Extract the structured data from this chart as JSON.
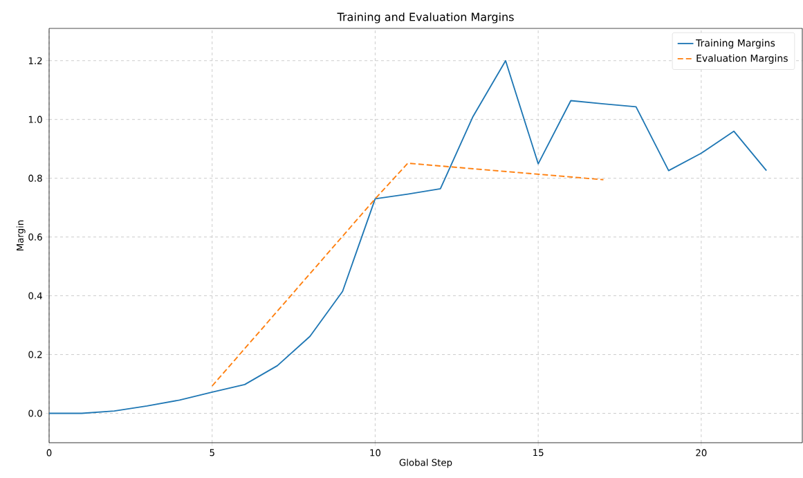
{
  "chart_data": {
    "type": "line",
    "title": "Training and Evaluation Margins",
    "xlabel": "Global Step",
    "ylabel": "Margin",
    "series": [
      {
        "name": "Training Margins",
        "color": "#1f77b4",
        "line_style": "solid",
        "x": [
          0,
          1,
          2,
          3,
          4,
          5,
          6,
          7,
          8,
          9,
          10,
          11,
          12,
          13,
          14,
          15,
          16,
          17,
          18,
          19,
          20,
          21,
          22
        ],
        "values": [
          0,
          0,
          0.008,
          0.025,
          0.045,
          0.072,
          0.098,
          0.162,
          0.262,
          0.415,
          0.73,
          0.746,
          0.764,
          1.01,
          1.2,
          0.849,
          1.064,
          1.053,
          1.043,
          0.826,
          0.885,
          0.96,
          0.826
        ]
      },
      {
        "name": "Evaluation Margins",
        "color": "#ff7f0e",
        "line_style": "dashed",
        "x": [
          5,
          10,
          11,
          17
        ],
        "values": [
          0.093,
          0.73,
          0.851,
          0.795
        ]
      }
    ],
    "xlim": [
      0,
      23.1
    ],
    "ylim": [
      -0.1,
      1.31
    ],
    "xticks": [
      0,
      5,
      10,
      15,
      20
    ],
    "yticks": [
      {
        "value": 0,
        "label": "0.0"
      },
      {
        "value": 0.2,
        "label": "0.2"
      },
      {
        "value": 0.4,
        "label": "0.4"
      },
      {
        "value": 0.6,
        "label": "0.6"
      },
      {
        "value": 0.8,
        "label": "0.8"
      },
      {
        "value": 1.0,
        "label": "1.0"
      },
      {
        "value": 1.2,
        "label": "1.2"
      }
    ],
    "grid": true,
    "legend": "top right",
    "marker": "none"
  }
}
